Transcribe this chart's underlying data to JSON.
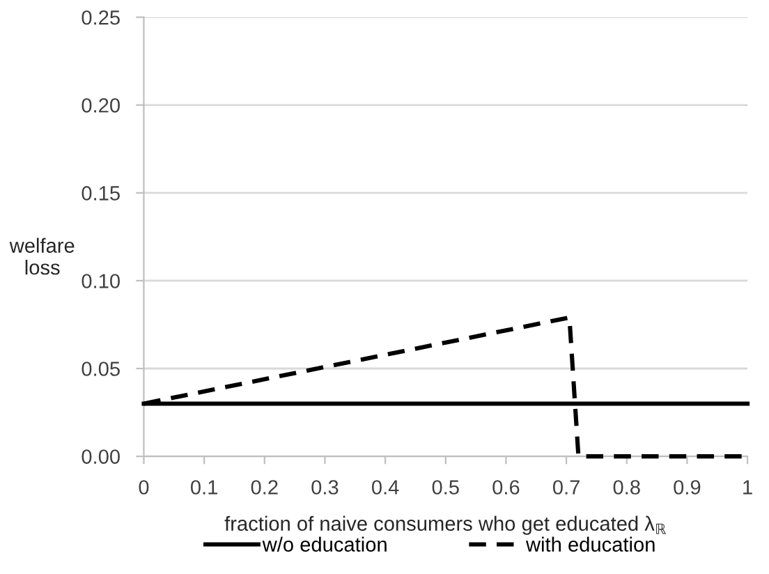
{
  "chart_data": {
    "type": "line",
    "xlabel": "fraction of naive consumers who get educated λ$_{ℝ}$",
    "ylabel": "welfare\nloss",
    "series": [
      {
        "name": "w/o education",
        "color": "#000000",
        "line_style": "solid",
        "x": [
          0,
          1
        ],
        "values": [
          0.03,
          0.03
        ]
      },
      {
        "name": "with education",
        "color": "#000000",
        "line_style": "dashed",
        "x": [
          0,
          0.705,
          0.72,
          1
        ],
        "values": [
          0.03,
          0.079,
          0,
          0
        ]
      }
    ],
    "xlim": [
      0,
      1
    ],
    "xticks": [
      0,
      0.1,
      0.2,
      0.3,
      0.4,
      0.5,
      0.6,
      0.7,
      0.8,
      0.9,
      1
    ],
    "ylim": [
      0,
      0.25
    ],
    "yticks": [
      {
        "value": 0,
        "label": "0.00"
      },
      {
        "value": 0.05,
        "label": "0.05"
      },
      {
        "value": 0.1,
        "label": "0.10"
      },
      {
        "value": 0.15,
        "label": "0.15"
      },
      {
        "value": 0.2,
        "label": "0.20"
      },
      {
        "value": 0.25,
        "label": "0.25"
      }
    ],
    "grid": "y",
    "legend": "bottom",
    "marker": "none"
  }
}
